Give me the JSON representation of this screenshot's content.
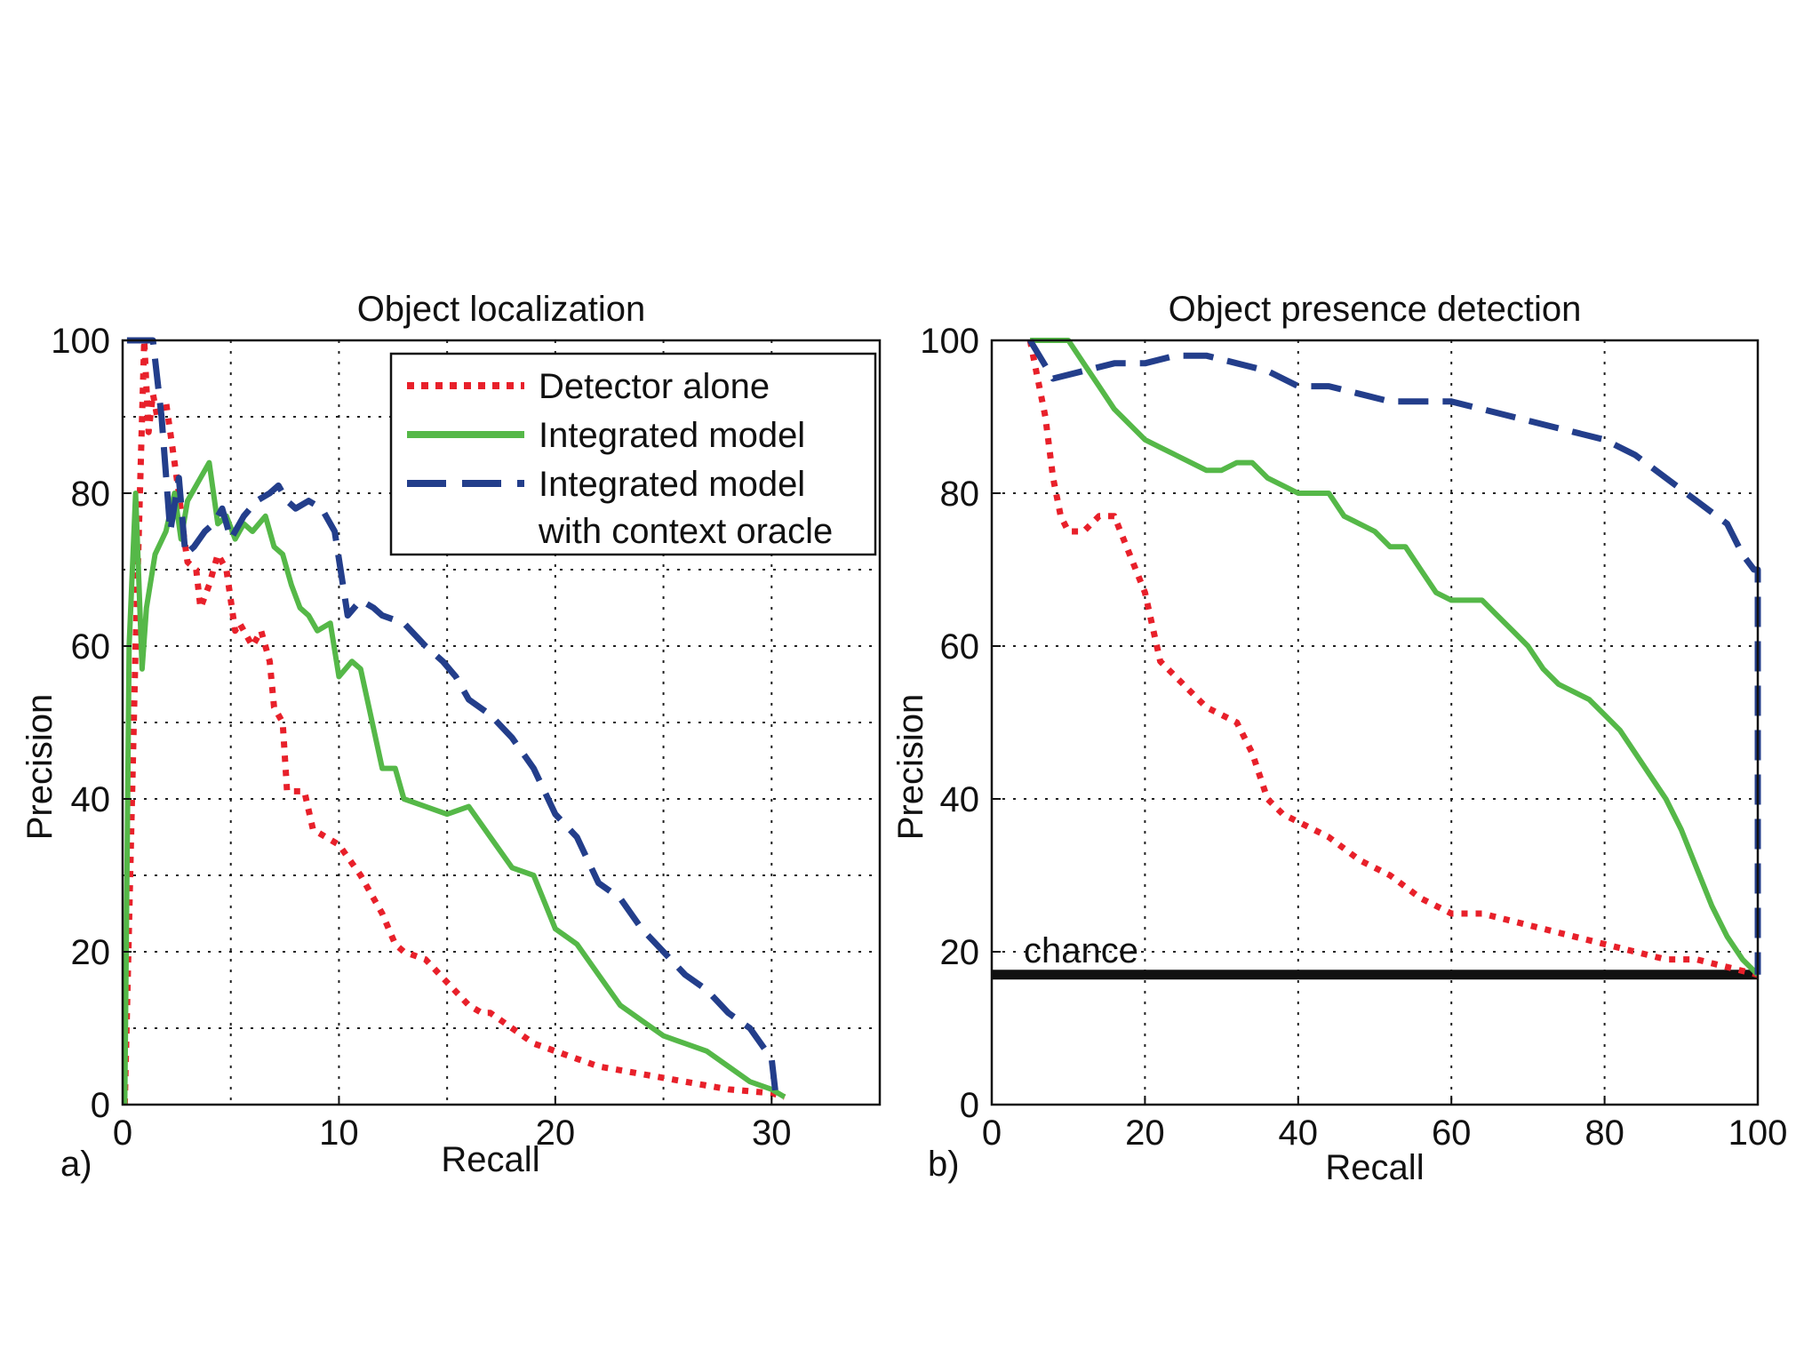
{
  "chart_data": [
    {
      "type": "line",
      "panel_label": "a)",
      "title": "Object localization",
      "xlabel": "Recall",
      "ylabel": "Precision",
      "xlim": [
        0,
        35
      ],
      "ylim": [
        0,
        100
      ],
      "xticks": [
        0,
        10,
        20,
        30
      ],
      "yticks": [
        0,
        20,
        40,
        60,
        80,
        100
      ],
      "grid": true,
      "legend": {
        "position": "top-right",
        "entries": [
          "Detector alone",
          "Integrated model",
          "Integrated model",
          "with context oracle"
        ]
      },
      "series": [
        {
          "name": "Detector alone",
          "color": "#e8202a",
          "style": "dotted",
          "x": [
            0.1,
            0.6,
            1.0,
            1.2,
            1.4,
            1.6,
            2.0,
            2.6,
            2.8,
            3.0,
            3.4,
            3.6,
            4.0,
            4.4,
            4.8,
            5.2,
            5.4,
            6.0,
            6.4,
            6.8,
            7.0,
            7.4,
            7.6,
            8.0,
            8.4,
            8.8,
            9.4,
            10.0,
            11.0,
            12.0,
            12.6,
            13.0,
            14.0,
            15.0,
            16.0,
            16.6,
            17.0,
            18.0,
            19.0,
            20.0,
            21.0,
            22.0,
            24.0,
            26.0,
            28.0,
            30.0,
            30.6
          ],
          "y": [
            0,
            60,
            100,
            88,
            93,
            90,
            92,
            80,
            75,
            71,
            70,
            65,
            68,
            72,
            70,
            62,
            63,
            60,
            62,
            58,
            52,
            50,
            41,
            41,
            41,
            36,
            35,
            34,
            30,
            25,
            21,
            20,
            19,
            16,
            13,
            12,
            12,
            10,
            8,
            7,
            6,
            5,
            4,
            3,
            2,
            1.5,
            1
          ]
        },
        {
          "name": "Integrated model",
          "color": "#55b848",
          "style": "solid",
          "x": [
            0.1,
            0.3,
            0.6,
            0.9,
            1.1,
            1.5,
            2.0,
            2.4,
            2.7,
            3.0,
            3.6,
            4.0,
            4.4,
            4.8,
            5.2,
            5.6,
            6.0,
            6.6,
            7.0,
            7.4,
            7.8,
            8.2,
            8.6,
            9.0,
            9.6,
            10.0,
            10.6,
            11.0,
            12.0,
            12.6,
            13.0,
            14.0,
            15.0,
            16.0,
            17.0,
            18.0,
            19.0,
            20.0,
            21.0,
            22.0,
            23.0,
            24.0,
            25.0,
            26.0,
            27.0,
            28.0,
            29.0,
            30.0,
            30.6
          ],
          "y": [
            0,
            60,
            80,
            57,
            65,
            72,
            75,
            80,
            74,
            79,
            82,
            84,
            76,
            77,
            74,
            76,
            75,
            77,
            73,
            72,
            68,
            65,
            64,
            62,
            63,
            56,
            58,
            57,
            44,
            44,
            40,
            39,
            38,
            39,
            35,
            31,
            30,
            23,
            21,
            17,
            13,
            11,
            9,
            8,
            7,
            5,
            3,
            2,
            1
          ]
        },
        {
          "name": "Integrated model with context oracle",
          "color": "#233e8b",
          "style": "dashed",
          "x": [
            0.2,
            0.7,
            1.0,
            1.4,
            1.8,
            2.2,
            2.6,
            2.9,
            3.3,
            3.8,
            4.2,
            4.6,
            5.0,
            5.6,
            6.2,
            6.8,
            7.2,
            7.6,
            8.0,
            8.6,
            9.2,
            9.8,
            10.4,
            11.0,
            11.6,
            12.0,
            13.0,
            14.0,
            14.8,
            15.4,
            16.0,
            17.0,
            18.0,
            19.0,
            20.0,
            21.0,
            22.0,
            23.0,
            24.0,
            25.0,
            26.0,
            27.0,
            28.0,
            29.0,
            30.0,
            30.2
          ],
          "y": [
            100,
            100,
            100,
            100,
            90,
            75,
            82,
            72,
            73,
            75,
            76,
            78,
            74,
            77,
            79,
            80,
            81,
            79,
            78,
            79,
            78,
            75,
            64,
            66,
            65,
            64,
            63,
            60,
            58,
            56,
            53,
            51,
            48,
            44,
            38,
            35,
            29,
            27,
            23,
            20,
            17,
            15,
            12,
            10,
            6,
            1
          ]
        }
      ]
    },
    {
      "type": "line",
      "panel_label": "b)",
      "title": "Object presence detection",
      "xlabel": "Recall",
      "ylabel": "Precision",
      "xlim": [
        0,
        100
      ],
      "ylim": [
        0,
        100
      ],
      "xticks": [
        0,
        20,
        40,
        60,
        80,
        100
      ],
      "yticks": [
        0,
        20,
        40,
        60,
        80,
        100
      ],
      "grid": true,
      "annotations": [
        {
          "text": "chance",
          "y": 17,
          "color": "#111111"
        }
      ],
      "series": [
        {
          "name": "Detector alone",
          "color": "#e8202a",
          "style": "dotted",
          "x": [
            5,
            6,
            7,
            8,
            9,
            10,
            12,
            14,
            16,
            18,
            20,
            22,
            24,
            26,
            28,
            30,
            32,
            34,
            36,
            38,
            40,
            44,
            48,
            52,
            56,
            60,
            64,
            68,
            72,
            76,
            80,
            84,
            88,
            92,
            96,
            100
          ],
          "y": [
            100,
            95,
            90,
            82,
            77,
            75,
            75,
            77,
            77,
            72,
            67,
            58,
            56,
            54,
            52,
            51,
            50,
            46,
            40,
            38,
            37,
            35,
            32,
            30,
            27,
            25,
            25,
            24,
            23,
            22,
            21,
            20,
            19,
            19,
            18,
            17
          ]
        },
        {
          "name": "Integrated model",
          "color": "#55b848",
          "style": "solid",
          "x": [
            5,
            6,
            8,
            10,
            12,
            14,
            16,
            18,
            20,
            22,
            24,
            26,
            28,
            30,
            32,
            34,
            36,
            38,
            40,
            42,
            44,
            46,
            48,
            50,
            52,
            54,
            56,
            58,
            60,
            62,
            64,
            66,
            68,
            70,
            72,
            74,
            76,
            78,
            80,
            82,
            84,
            86,
            88,
            90,
            92,
            94,
            96,
            98,
            100
          ],
          "y": [
            100,
            100,
            100,
            100,
            97,
            94,
            91,
            89,
            87,
            86,
            85,
            84,
            83,
            83,
            84,
            84,
            82,
            81,
            80,
            80,
            80,
            77,
            76,
            75,
            73,
            73,
            70,
            67,
            66,
            66,
            66,
            64,
            62,
            60,
            57,
            55,
            54,
            53,
            51,
            49,
            46,
            43,
            40,
            36,
            31,
            26,
            22,
            19,
            17
          ]
        },
        {
          "name": "Integrated model with context oracle",
          "color": "#233e8b",
          "style": "dashed",
          "x": [
            5,
            8,
            12,
            16,
            20,
            24,
            28,
            32,
            36,
            40,
            44,
            48,
            52,
            56,
            60,
            64,
            68,
            72,
            76,
            80,
            84,
            88,
            92,
            96,
            98,
            99.5,
            100,
            100
          ],
          "y": [
            100,
            95,
            96,
            97,
            97,
            98,
            98,
            97,
            96,
            94,
            94,
            93,
            92,
            92,
            92,
            91,
            90,
            89,
            88,
            87,
            85,
            82,
            79,
            76,
            72,
            70,
            70,
            17
          ]
        }
      ]
    }
  ]
}
